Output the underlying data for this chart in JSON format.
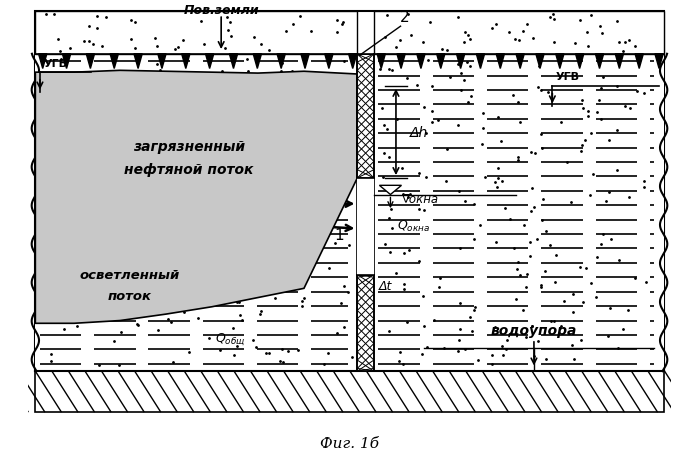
{
  "fig_width": 6.99,
  "fig_height": 4.52,
  "dpi": 100,
  "bg_color": "#ffffff",
  "title_text": "Фиг. 1б",
  "label_pov_zemli": "Пов.земли",
  "label_ugv_left": "УГВ",
  "label_ugv_right": "УГВ",
  "label_zagr1": "загрязненный",
  "label_zagr2": "нефтяной поток",
  "label_osvet1": "осветленный",
  "label_osvet2": "поток",
  "label_vodoupor": "водоупора",
  "label_delta_h": "Δh",
  "label_delta_t": "Δt",
  "label_nabla_okna": "∇окна",
  "label_Q_okna": "Qокна",
  "label_Q_obsh": "Qобщ",
  "label_1": "1",
  "label_2": "2"
}
